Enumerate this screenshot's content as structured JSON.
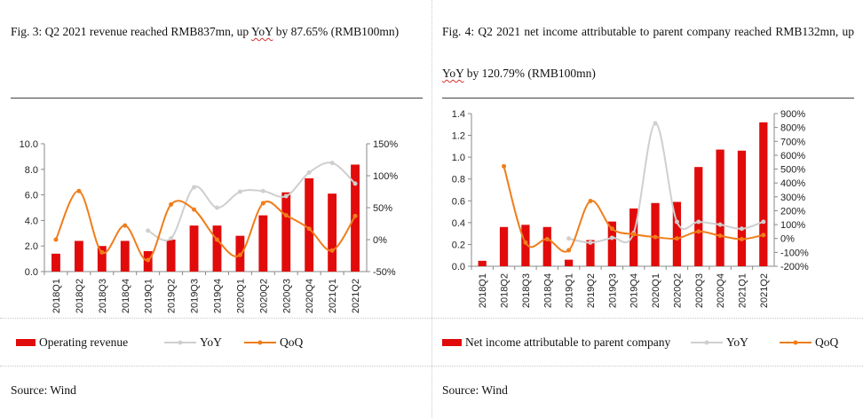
{
  "colors": {
    "bar": "#e10b0b",
    "yoy": "#cfcfcf",
    "qoq": "#f07d1a",
    "axis": "#888888"
  },
  "left": {
    "caption_pre": "Fig.  3:  Q2  2021  revenue  reached  RMB837mn,  up ",
    "caption_yoy": "YoY",
    "caption_post": " by  87.65% (RMB100mn)",
    "legend": {
      "bar": "Operating revenue",
      "yoy": "YoY",
      "qoq": "QoQ"
    },
    "source": "Source: Wind"
  },
  "right": {
    "caption_pre": "Fig.  4:  Q2  2021  net  income  attributable  to  parent  company  reached RMB132mn, up ",
    "caption_yoy": "YoY",
    "caption_post": " by 120.79% (RMB100mn)",
    "legend": {
      "bar": "Net income attributable to parent company",
      "yoy": "YoY",
      "qoq": "QoQ"
    },
    "source": "Source: Wind"
  },
  "chart_data": [
    {
      "type": "bar",
      "categories": [
        "2018Q1",
        "2018Q2",
        "2018Q3",
        "2018Q4",
        "2019Q1",
        "2019Q2",
        "2019Q3",
        "2019Q4",
        "2020Q1",
        "2020Q2",
        "2020Q3",
        "2020Q4",
        "2021Q1",
        "2021Q2"
      ],
      "series": [
        {
          "name": "Operating revenue",
          "axis": "left",
          "type": "bar",
          "values": [
            1.4,
            2.4,
            2.0,
            2.4,
            1.6,
            2.5,
            3.6,
            3.6,
            2.8,
            4.4,
            6.2,
            7.3,
            6.1,
            8.37
          ]
        },
        {
          "name": "YoY",
          "axis": "right",
          "type": "line",
          "values": [
            null,
            null,
            null,
            null,
            14,
            2,
            82,
            50,
            75,
            76,
            68,
            105,
            120,
            87.65
          ]
        },
        {
          "name": "QoQ",
          "axis": "right",
          "type": "line",
          "values": [
            0,
            76,
            -20,
            22,
            -32,
            55,
            47,
            0,
            -24,
            57,
            38,
            17,
            -17,
            37
          ]
        }
      ],
      "y_left": {
        "range": [
          0,
          10
        ],
        "ticks": [
          "0.0",
          "2.0",
          "4.0",
          "6.0",
          "8.0",
          "10.0"
        ]
      },
      "y_right": {
        "range": [
          -50,
          150
        ],
        "ticks": [
          "-50%",
          "0%",
          "50%",
          "100%",
          "150%"
        ]
      },
      "legend_position": "bottom",
      "grid": false
    },
    {
      "type": "bar",
      "categories": [
        "2018Q1",
        "2018Q2",
        "2018Q3",
        "2018Q4",
        "2019Q1",
        "2019Q2",
        "2019Q3",
        "2019Q4",
        "2020Q1",
        "2020Q2",
        "2020Q3",
        "2020Q4",
        "2021Q1",
        "2021Q2"
      ],
      "series": [
        {
          "name": "Net income attributable to parent company",
          "axis": "left",
          "type": "bar",
          "values": [
            0.05,
            0.36,
            0.38,
            0.36,
            0.06,
            0.24,
            0.41,
            0.53,
            0.58,
            0.59,
            0.91,
            1.07,
            1.06,
            1.32
          ]
        },
        {
          "name": "YoY",
          "axis": "right",
          "type": "line",
          "values": [
            null,
            null,
            null,
            null,
            0,
            -30,
            5,
            40,
            830,
            120,
            120,
            100,
            70,
            120.79
          ]
        },
        {
          "name": "QoQ",
          "axis": "right",
          "type": "line",
          "values": [
            null,
            520,
            -30,
            -5,
            -85,
            270,
            70,
            30,
            10,
            0,
            50,
            20,
            -5,
            25
          ]
        }
      ],
      "y_left": {
        "range": [
          0,
          1.4
        ],
        "ticks": [
          "0.0",
          "0.2",
          "0.4",
          "0.6",
          "0.8",
          "1.0",
          "1.2",
          "1.4"
        ]
      },
      "y_right": {
        "range": [
          -200,
          900
        ],
        "ticks": [
          "-200%",
          "-100%",
          "0%",
          "100%",
          "200%",
          "300%",
          "400%",
          "500%",
          "600%",
          "700%",
          "800%",
          "900%"
        ]
      },
      "legend_position": "bottom",
      "grid": false
    }
  ]
}
